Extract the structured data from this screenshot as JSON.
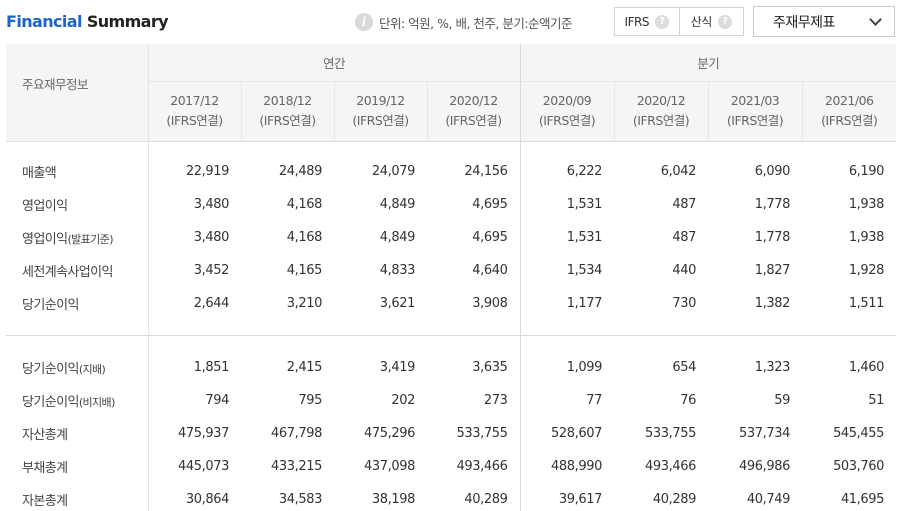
{
  "header": {
    "title_part1": "Financial",
    "title_part2": " Summary",
    "unit_text": "단위: 억원, %, 배, 천주, 분기:순액기준",
    "ifrs_label": "IFRS",
    "formula_label": "산식",
    "help_glyph": "?",
    "select_value": "주재무제표"
  },
  "table": {
    "corner_label": "주요재무정보",
    "group_annual": "연간",
    "group_quarter": "분기",
    "columns": [
      {
        "period": "2017/12",
        "basis": "(IFRS연결)"
      },
      {
        "period": "2018/12",
        "basis": "(IFRS연결)"
      },
      {
        "period": "2019/12",
        "basis": "(IFRS연결)"
      },
      {
        "period": "2020/12",
        "basis": "(IFRS연결)"
      },
      {
        "period": "2020/09",
        "basis": "(IFRS연결)"
      },
      {
        "period": "2020/12",
        "basis": "(IFRS연결)"
      },
      {
        "period": "2021/03",
        "basis": "(IFRS연결)"
      },
      {
        "period": "2021/06",
        "basis": "(IFRS연결)"
      }
    ],
    "section1": [
      {
        "label": "매출액",
        "suffix": "",
        "values": [
          "22,919",
          "24,489",
          "24,079",
          "24,156",
          "6,222",
          "6,042",
          "6,090",
          "6,190"
        ]
      },
      {
        "label": "영업이익",
        "suffix": "",
        "values": [
          "3,480",
          "4,168",
          "4,849",
          "4,695",
          "1,531",
          "487",
          "1,778",
          "1,938"
        ]
      },
      {
        "label": "영업이익",
        "suffix": "(발표기준)",
        "values": [
          "3,480",
          "4,168",
          "4,849",
          "4,695",
          "1,531",
          "487",
          "1,778",
          "1,938"
        ]
      },
      {
        "label": "세전계속사업이익",
        "suffix": "",
        "values": [
          "3,452",
          "4,165",
          "4,833",
          "4,640",
          "1,534",
          "440",
          "1,827",
          "1,928"
        ]
      },
      {
        "label": "당기순이익",
        "suffix": "",
        "values": [
          "2,644",
          "3,210",
          "3,621",
          "3,908",
          "1,177",
          "730",
          "1,382",
          "1,511"
        ]
      }
    ],
    "section2": [
      {
        "label": "당기순이익",
        "suffix": "(지배)",
        "values": [
          "1,851",
          "2,415",
          "3,419",
          "3,635",
          "1,099",
          "654",
          "1,323",
          "1,460"
        ]
      },
      {
        "label": "당기순이익",
        "suffix": "(비지배)",
        "values": [
          "794",
          "795",
          "202",
          "273",
          "77",
          "76",
          "59",
          "51"
        ]
      },
      {
        "label": "자산총계",
        "suffix": "",
        "values": [
          "475,937",
          "467,798",
          "475,296",
          "533,755",
          "528,607",
          "533,755",
          "537,734",
          "545,455"
        ]
      },
      {
        "label": "부채총계",
        "suffix": "",
        "values": [
          "445,073",
          "433,215",
          "437,098",
          "493,466",
          "488,990",
          "493,466",
          "496,986",
          "503,760"
        ]
      },
      {
        "label": "자본총계",
        "suffix": "",
        "values": [
          "30,864",
          "34,583",
          "38,198",
          "40,289",
          "39,617",
          "40,289",
          "40,749",
          "41,695"
        ]
      }
    ]
  }
}
